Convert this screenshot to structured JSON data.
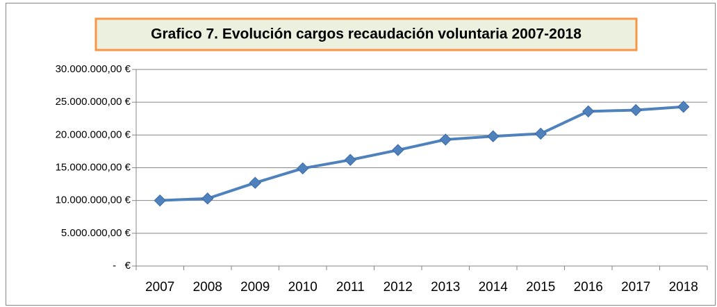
{
  "chart_data": {
    "type": "line",
    "title": "Grafico 7. Evolución cargos recaudación voluntaria 2007-2018",
    "categories": [
      "2007",
      "2008",
      "2009",
      "2010",
      "2011",
      "2012",
      "2013",
      "2014",
      "2015",
      "2016",
      "2017",
      "2018"
    ],
    "series": [
      {
        "name": "cargos recaudación voluntaria",
        "color": "#4f81bd",
        "values": [
          10000000,
          10300000,
          12700000,
          14900000,
          16200000,
          17700000,
          19300000,
          19800000,
          20200000,
          23600000,
          23800000,
          24300000
        ]
      }
    ],
    "ylim": [
      0,
      30000000
    ],
    "yticks": [
      {
        "value": 0,
        "label": "-   €"
      },
      {
        "value": 5000000,
        "label": "5.000.000,00 €"
      },
      {
        "value": 10000000,
        "label": "10.000.000,00 €"
      },
      {
        "value": 15000000,
        "label": "15.000.000,00 €"
      },
      {
        "value": 20000000,
        "label": "20.000.000,00 €"
      },
      {
        "value": 25000000,
        "label": "25.000.000,00 €"
      },
      {
        "value": 30000000,
        "label": "30.000.000,00 €"
      }
    ],
    "grid": true
  }
}
